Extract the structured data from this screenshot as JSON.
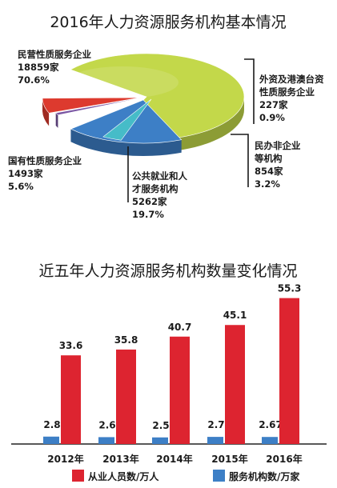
{
  "chart_data": [
    {
      "type": "pie",
      "title": "2016年人力资源服务机构基本情况",
      "slices": [
        {
          "label_lines": [
            "民营性质服务企业"
          ],
          "count": "18859家",
          "percent": "70.6%",
          "value": 70.6,
          "color": "#c3d84a"
        },
        {
          "label_lines": [
            "外资及港澳台资",
            "性质服务企业"
          ],
          "count": "227家",
          "percent": "0.9%",
          "value": 0.9,
          "color": "#7a56a3"
        },
        {
          "label_lines": [
            "民办非企业",
            "等机构"
          ],
          "count": "854家",
          "percent": "3.2%",
          "value": 3.2,
          "color": "#46bcc8"
        },
        {
          "label_lines": [
            "公共就业和人",
            "才服务机构"
          ],
          "count": "5262家",
          "percent": "19.7%",
          "value": 19.7,
          "color": "#3d7fc6"
        },
        {
          "label_lines": [
            "国有性质服务企业"
          ],
          "count": "1493家",
          "percent": "5.6%",
          "value": 5.6,
          "color": "#dd3a2e"
        }
      ]
    },
    {
      "type": "bar",
      "title": "近五年人力资源服务机构数量变化情况",
      "categories": [
        "2012年",
        "2013年",
        "2014年",
        "2015年",
        "2016年"
      ],
      "series": [
        {
          "name": "服务机构数/万家",
          "values": [
            2.8,
            2.6,
            2.5,
            2.7,
            2.67
          ],
          "labels": [
            "2.8",
            "2.6",
            "2.5",
            "2.7",
            "2.67"
          ],
          "color": "#3d7fc6"
        },
        {
          "name": "从业人员数/万人",
          "values": [
            33.6,
            35.8,
            40.7,
            45.1,
            55.3
          ],
          "labels": [
            "33.6",
            "35.8",
            "40.7",
            "45.1",
            "55.3"
          ],
          "color": "#dd2430"
        }
      ],
      "legend_order": [
        "从业人员数/万人",
        "服务机构数/万家"
      ],
      "ylim": [
        0,
        57
      ]
    }
  ]
}
